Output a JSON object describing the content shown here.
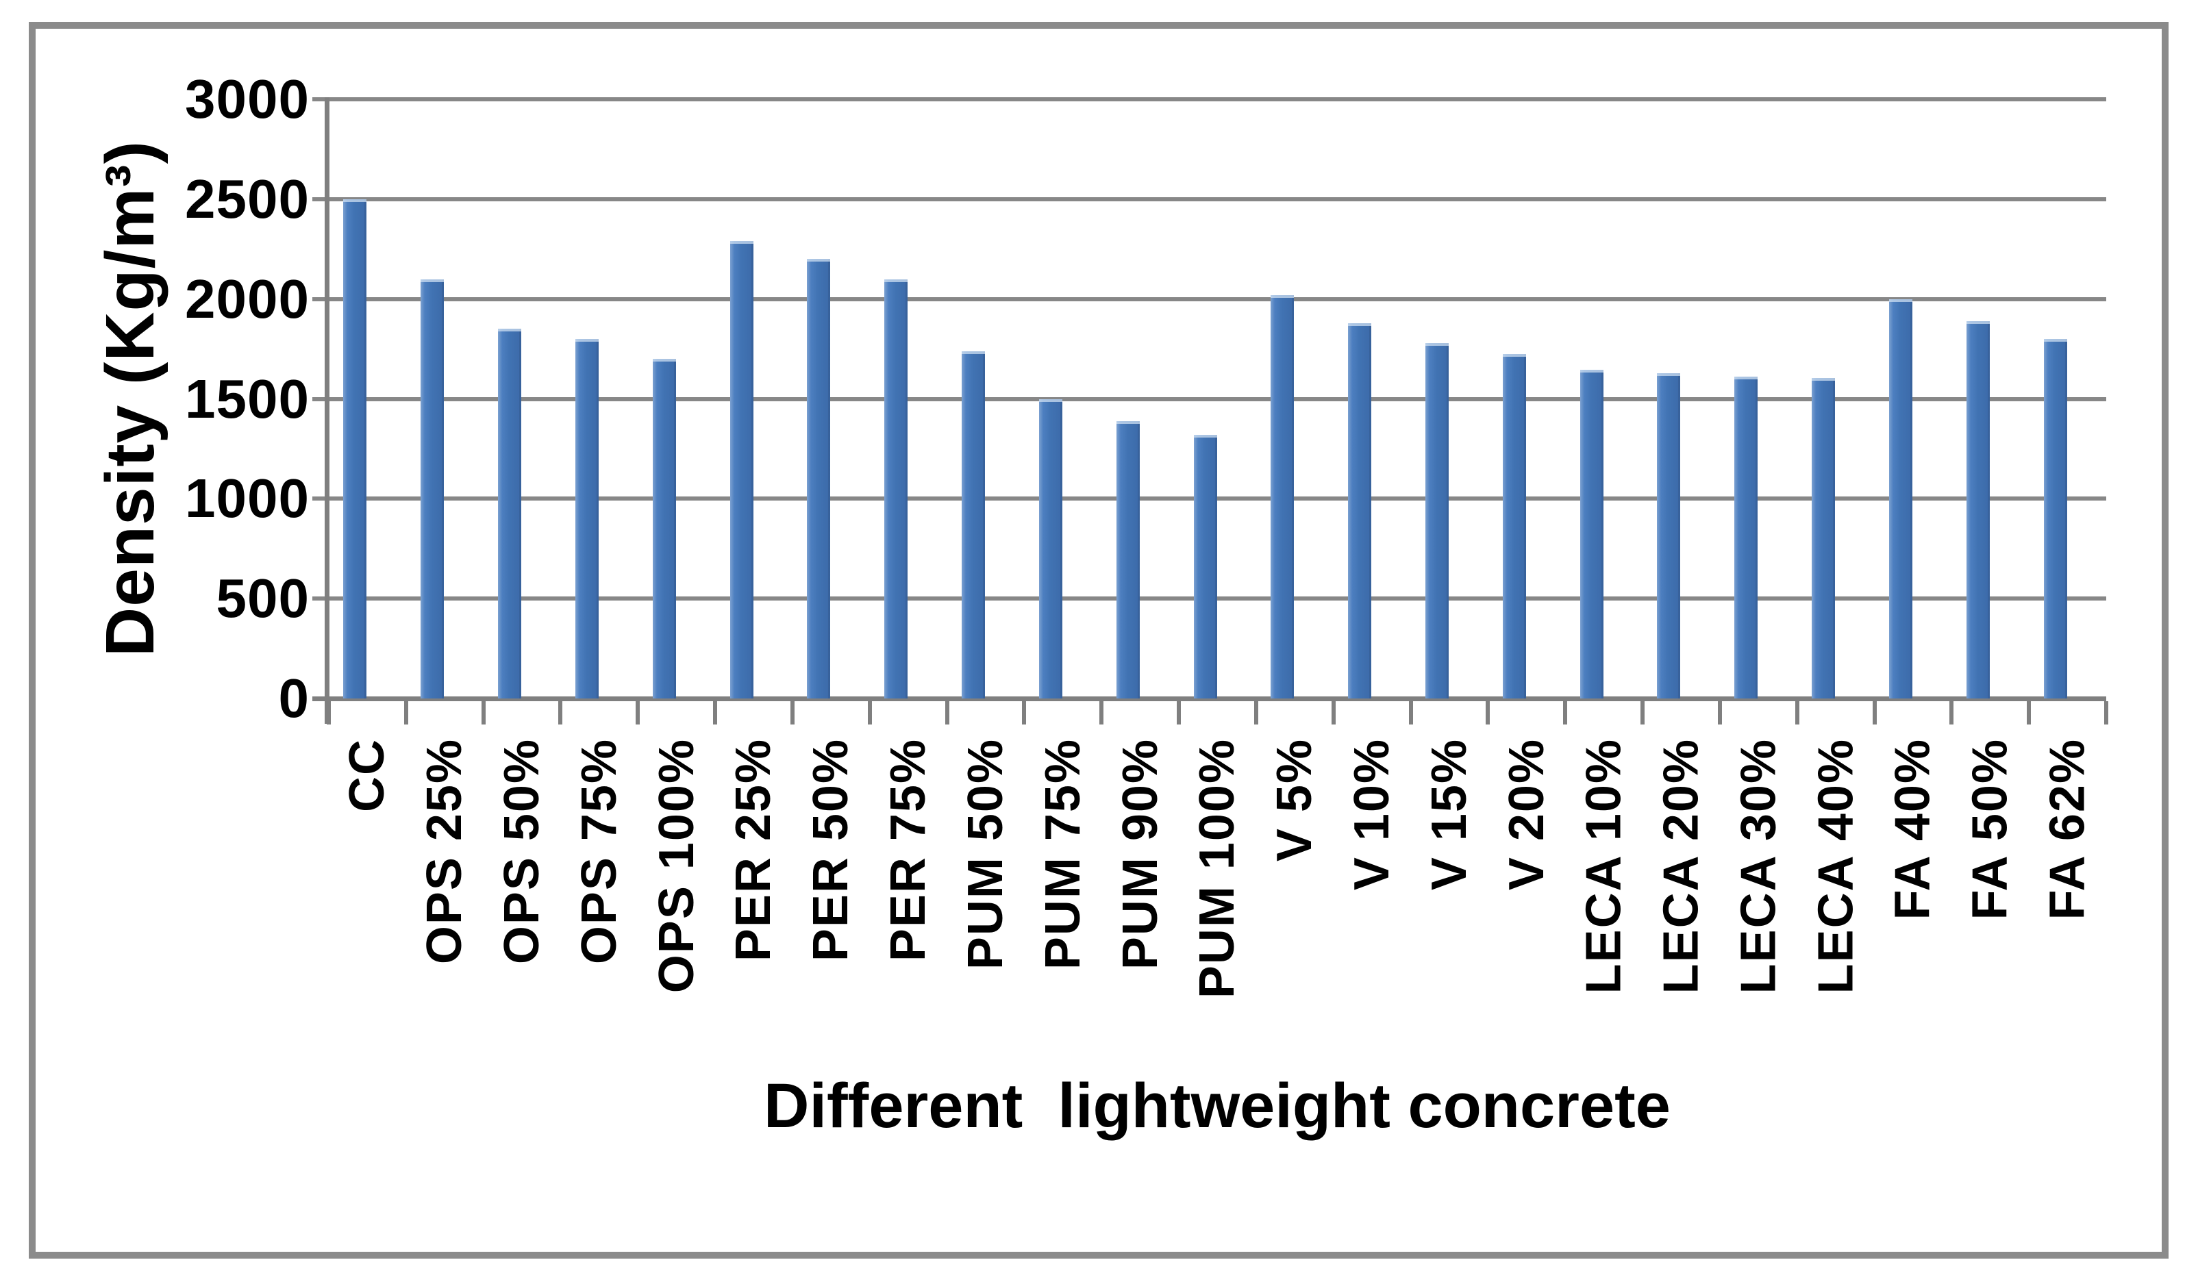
{
  "chart_data": {
    "type": "bar",
    "title": "",
    "xlabel": "Different  lightweight concrete",
    "ylabel": "Density (Kg/m³)",
    "categories": [
      "CC",
      "OPS 25%",
      "OPS 50%",
      "OPS 75%",
      "OPS 100%",
      "PER 25%",
      "PER 50%",
      "PER 75%",
      "PUM 50%",
      "PUM 75%",
      "PUM 90%",
      "PUM 100%",
      "V 5%",
      "V 10%",
      "V 15%",
      "V 20%",
      "LECA 10%",
      "LECA 20%",
      "LECA 30%",
      "LECA 40%",
      "FA 40%",
      "FA 50%",
      "FA 62%"
    ],
    "values": [
      2500,
      2100,
      1850,
      1800,
      1700,
      2290,
      2200,
      2100,
      1740,
      1500,
      1390,
      1320,
      2020,
      1880,
      1780,
      1725,
      1645,
      1630,
      1610,
      1605,
      2000,
      1890,
      1800
    ],
    "ylim": [
      0,
      3000
    ],
    "yticks": [
      0,
      500,
      1000,
      1500,
      2000,
      2500,
      3000
    ],
    "grid": "horizontal",
    "legend": "none"
  },
  "style": {
    "bar_color": "#4173b3",
    "bar_highlight": "#7ca1d1",
    "gridline_color": "#878787",
    "axis_color": "#7f7f7f",
    "text_color": "#000000",
    "frame_border_color": "#8b8b8b",
    "background": "#ffffff"
  }
}
